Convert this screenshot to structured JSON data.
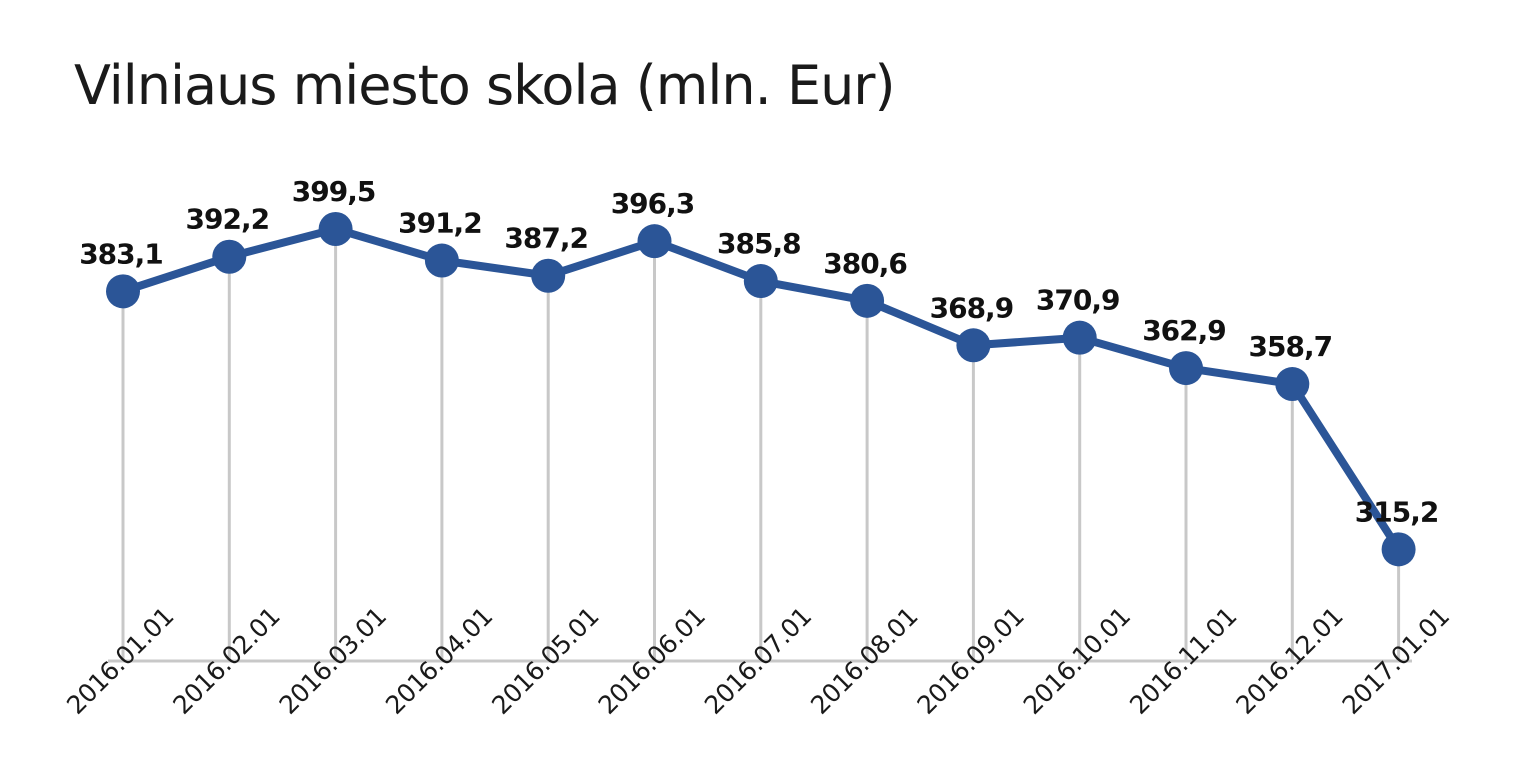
{
  "chart_data": {
    "type": "line",
    "title": "Vilniaus miesto skola (mln. Eur)",
    "xlabel": "",
    "ylabel": "",
    "categories": [
      "2016.01.01",
      "2016.02.01",
      "2016.03.01",
      "2016.04.01",
      "2016.05.01",
      "2016.06.01",
      "2016.07.01",
      "2016.08.01",
      "2016.09.01",
      "2016.10.01",
      "2016.11.01",
      "2016.12.01",
      "2017.01.01"
    ],
    "series": [
      {
        "values": [
          383.1,
          392.2,
          399.5,
          391.2,
          387.2,
          396.3,
          385.8,
          380.6,
          368.9,
          370.9,
          362.9,
          358.7,
          315.2
        ],
        "labels": [
          "383,1",
          "392,2",
          "399,5",
          "391,2",
          "387,2",
          "396,3",
          "385,8",
          "380,6",
          "368,9",
          "370,9",
          "362,9",
          "358,7",
          "315,2"
        ]
      }
    ],
    "data_labels": true,
    "grid": "vertical drop lines",
    "legend": "none",
    "colors": {
      "line": "#2b5597",
      "drop_line": "#c8c8c8",
      "baseline": "#c8c8c8",
      "text": "#111111"
    }
  }
}
